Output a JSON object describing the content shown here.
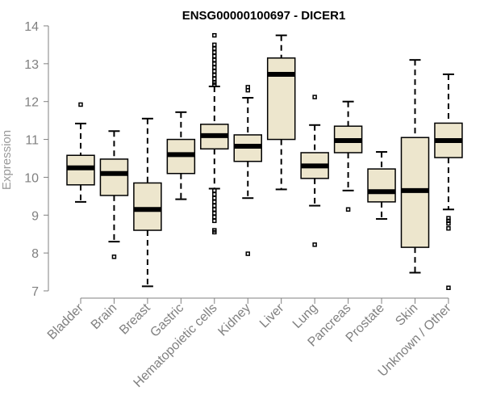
{
  "chart_data": {
    "type": "boxplot",
    "title": "ENSG00000100697 - DICER1",
    "xlabel": "",
    "ylabel": "Expression",
    "ylim": [
      7,
      14
    ],
    "yticks": [
      7,
      8,
      9,
      10,
      11,
      12,
      13,
      14
    ],
    "box_color": "#ede6cd",
    "categories": [
      "Bladder",
      "Brain",
      "Breast",
      "Gastric",
      "Hematopoietic cells",
      "Kidney",
      "Liver",
      "Lung",
      "Pancreas",
      "Prostate",
      "Skin",
      "Unknown / Other"
    ],
    "boxes": [
      {
        "name": "Bladder",
        "whisker_low": 9.35,
        "q1": 9.8,
        "median": 10.25,
        "q3": 10.58,
        "whisker_high": 11.42,
        "outliers": [
          11.92
        ]
      },
      {
        "name": "Brain",
        "whisker_low": 8.3,
        "q1": 9.52,
        "median": 10.1,
        "q3": 10.48,
        "whisker_high": 11.22,
        "outliers": [
          7.9
        ]
      },
      {
        "name": "Breast",
        "whisker_low": 7.12,
        "q1": 8.6,
        "median": 9.15,
        "q3": 9.85,
        "whisker_high": 11.55,
        "outliers": []
      },
      {
        "name": "Gastric",
        "whisker_low": 9.42,
        "q1": 10.1,
        "median": 10.6,
        "q3": 11.0,
        "whisker_high": 11.72,
        "outliers": []
      },
      {
        "name": "Hematopoietic cells",
        "whisker_low": 9.7,
        "q1": 10.75,
        "median": 11.1,
        "q3": 11.4,
        "whisker_high": 12.4,
        "outliers": [
          13.75,
          13.5,
          13.4,
          13.3,
          13.2,
          13.1,
          13.0,
          12.9,
          12.8,
          12.7,
          12.6,
          12.5,
          12.45,
          9.65,
          9.55,
          9.45,
          9.35,
          9.25,
          9.15,
          9.05,
          8.95,
          8.85,
          8.6,
          8.55
        ]
      },
      {
        "name": "Kidney",
        "whisker_low": 9.45,
        "q1": 10.42,
        "median": 10.82,
        "q3": 11.12,
        "whisker_high": 12.1,
        "outliers": [
          12.38,
          12.3,
          7.98
        ]
      },
      {
        "name": "Liver",
        "whisker_low": 9.68,
        "q1": 11.0,
        "median": 12.72,
        "q3": 13.15,
        "whisker_high": 13.75,
        "outliers": []
      },
      {
        "name": "Lung",
        "whisker_low": 9.25,
        "q1": 9.97,
        "median": 10.3,
        "q3": 10.65,
        "whisker_high": 11.38,
        "outliers": [
          12.12,
          8.22
        ]
      },
      {
        "name": "Pancreas",
        "whisker_low": 9.65,
        "q1": 10.65,
        "median": 10.97,
        "q3": 11.35,
        "whisker_high": 12.0,
        "outliers": [
          9.15
        ]
      },
      {
        "name": "Prostate",
        "whisker_low": 8.9,
        "q1": 9.35,
        "median": 9.62,
        "q3": 10.22,
        "whisker_high": 10.67,
        "outliers": []
      },
      {
        "name": "Skin",
        "whisker_low": 7.48,
        "q1": 8.15,
        "median": 9.65,
        "q3": 11.05,
        "whisker_high": 13.1,
        "outliers": []
      },
      {
        "name": "Unknown / Other",
        "whisker_low": 9.15,
        "q1": 10.52,
        "median": 10.97,
        "q3": 11.43,
        "whisker_high": 12.72,
        "outliers": [
          8.92,
          8.85,
          8.78,
          8.65,
          7.08
        ]
      }
    ]
  }
}
